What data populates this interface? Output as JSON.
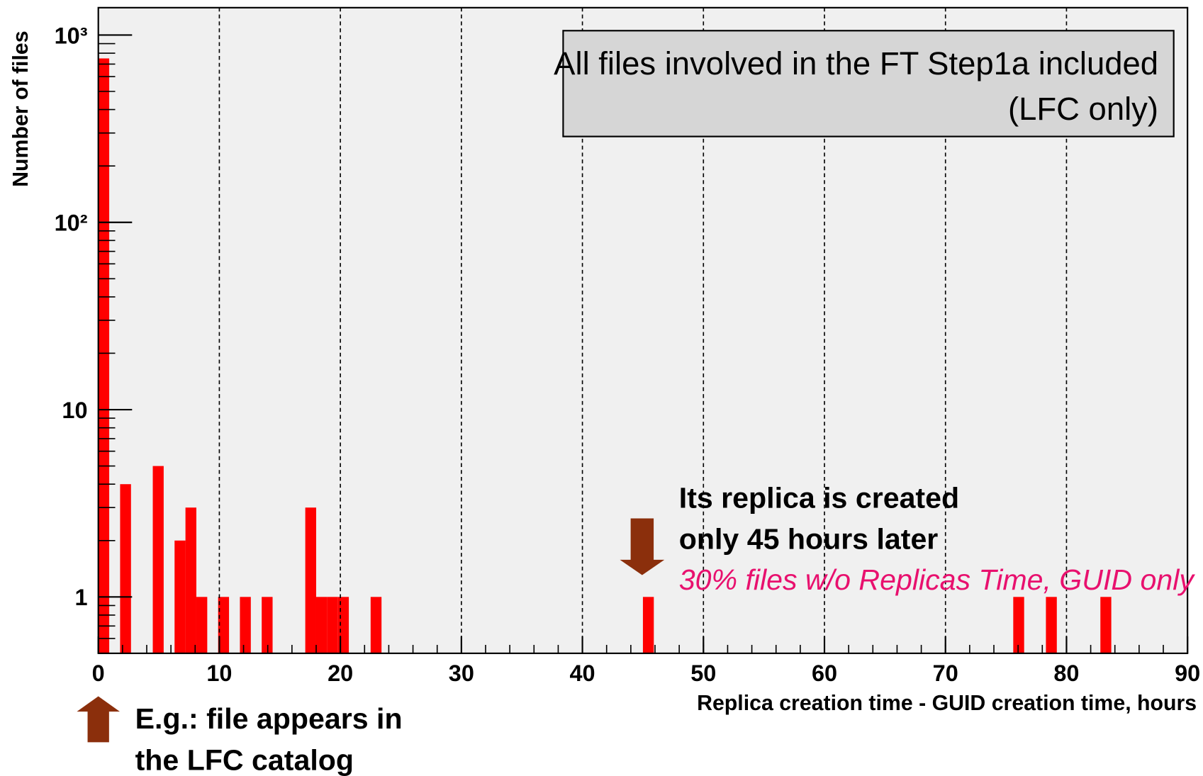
{
  "chart_data": {
    "type": "histogram",
    "xlabel": "Replica creation time - GUID creation time, hours",
    "ylabel": "Number of files",
    "bins": [
      0,
      0.9,
      1.8,
      2.7,
      3.6,
      4.5,
      5.4,
      6.3,
      7.2,
      8.1,
      9,
      9.9,
      10.8,
      11.7,
      12.6,
      13.5,
      14.4,
      15.3,
      16.2,
      17.1,
      18,
      18.9,
      19.8,
      20.7,
      21.6,
      22.5,
      23.4,
      24.3,
      25.2,
      26.1,
      27,
      27.9,
      28.8,
      29.7,
      30.6,
      31.5,
      32.4,
      33.3,
      34.2,
      35.1,
      36,
      36.9,
      37.8,
      38.7,
      39.6,
      40.5,
      41.4,
      42.3,
      43.2,
      44.1,
      45,
      45.9,
      46.8,
      47.7,
      48.6,
      49.5,
      50.4,
      51.3,
      52.2,
      53.1,
      54,
      54.9,
      55.8,
      56.7,
      57.6,
      58.5,
      59.4,
      60.3,
      61.2,
      62.1,
      63,
      63.9,
      64.8,
      65.7,
      66.6,
      67.5,
      68.4,
      69.3,
      70.2,
      71.1,
      72,
      72.9,
      73.8,
      74.7,
      75.6,
      76.5,
      77.4,
      78.3,
      79.2,
      80.1,
      81,
      81.9,
      82.8,
      83.7,
      84.6,
      85.5,
      86.4,
      87.3,
      88.2,
      89.1,
      90
    ],
    "values": [
      750,
      0,
      4,
      0,
      0,
      5,
      0,
      2,
      3,
      1,
      0,
      1,
      0,
      1,
      0,
      1,
      0,
      0,
      0,
      3,
      1,
      1,
      1,
      0,
      0,
      1,
      0,
      0,
      0,
      0,
      0,
      0,
      0,
      0,
      0,
      0,
      0,
      0,
      0,
      0,
      0,
      0,
      0,
      0,
      0,
      0,
      0,
      0,
      0,
      0,
      1,
      0,
      0,
      0,
      0,
      0,
      0,
      0,
      0,
      0,
      0,
      0,
      0,
      0,
      0,
      0,
      0,
      0,
      0,
      0,
      0,
      0,
      0,
      0,
      0,
      0,
      0,
      0,
      0,
      0,
      0,
      0,
      0,
      0,
      1,
      0,
      0,
      1,
      0,
      0,
      0,
      0,
      1,
      0,
      0,
      0,
      0,
      0,
      0,
      0
    ],
    "color": "#ff0000",
    "xlim": [
      0,
      90
    ],
    "xticks": [
      0,
      10,
      20,
      30,
      40,
      50,
      60,
      70,
      80,
      90
    ],
    "ylim": [
      0.5,
      1400
    ],
    "yticks": [
      1,
      10,
      {
        "value": 100,
        "label": "10²"
      },
      {
        "value": 1000,
        "label": "10³"
      }
    ],
    "log_y": true,
    "grid": "x",
    "box_text": [
      "All files involved in the FT Step1a included",
      "(LFC only)"
    ],
    "annotations": [
      "Its replica is created",
      "only 45 hours later",
      "30% files w/o Replicas Time, GUID only",
      "E.g.: file appears in",
      "the LFC catalog"
    ]
  }
}
